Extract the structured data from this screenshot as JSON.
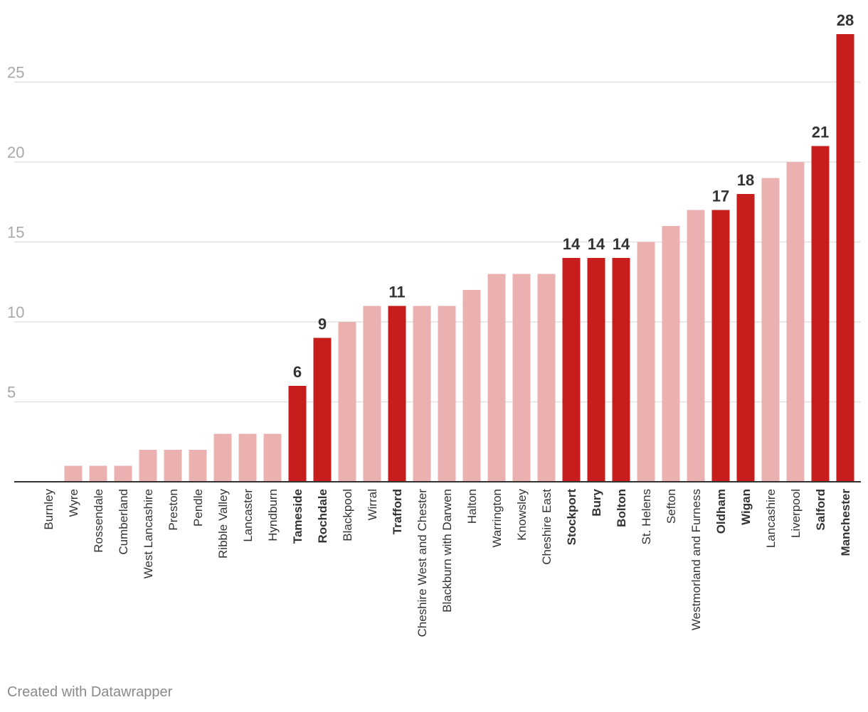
{
  "chart_data": {
    "type": "bar",
    "orientation": "vertical",
    "categories": [
      "Burnley",
      "Wyre",
      "Rossendale",
      "Cumberland",
      "West Lancashire",
      "Preston",
      "Pendle",
      "Ribble Valley",
      "Lancaster",
      "Hyndburn",
      "Tameside",
      "Rochdale",
      "Blackpool",
      "Wirral",
      "Trafford",
      "Cheshire West and Chester",
      "Blackburn with Darwen",
      "Halton",
      "Warrington",
      "Knowsley",
      "Cheshire East",
      "Stockport",
      "Bury",
      "Bolton",
      "St. Helens",
      "Sefton",
      "Westmorland and Furness",
      "Oldham",
      "Wigan",
      "Lancashire",
      "Liverpool",
      "Salford",
      "Manchester"
    ],
    "values": [
      0,
      1,
      1,
      1,
      2,
      2,
      2,
      3,
      3,
      3,
      6,
      9,
      10,
      11,
      11,
      11,
      11,
      12,
      13,
      13,
      13,
      14,
      14,
      14,
      15,
      16,
      17,
      17,
      18,
      19,
      20,
      21,
      28
    ],
    "highlighted": [
      "Tameside",
      "Rochdale",
      "Trafford",
      "Stockport",
      "Bury",
      "Bolton",
      "Oldham",
      "Wigan",
      "Salford",
      "Manchester"
    ],
    "yticks": [
      5,
      10,
      15,
      20,
      25
    ],
    "ylim": [
      0,
      28
    ],
    "grid": true,
    "title": "",
    "xlabel": "",
    "ylabel": "",
    "colors": {
      "highlight": "#c71e1d",
      "base": "#ebb0b0",
      "grid": "#e2e2e2",
      "axis": "#333333",
      "tick_text": "#a8a8a8",
      "label_text": "#333333"
    }
  },
  "footer": {
    "credit": "Created with Datawrapper"
  }
}
